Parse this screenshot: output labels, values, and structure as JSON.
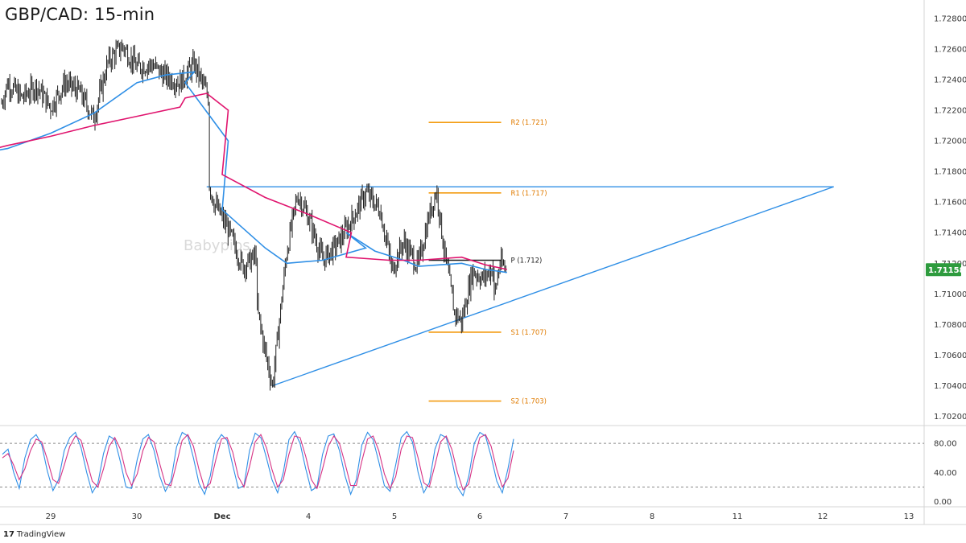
{
  "title": "GBP/CAD: 15-min",
  "watermark": "Babypips",
  "brand": "TradingView",
  "colors": {
    "candles": "#1f1f1f",
    "ema_fast": "#2f8fe6",
    "ema_slow": "#e0146e",
    "resistance": "#2f8fe6",
    "pivot_levels": "#f39c12",
    "pivot_p": "#1f1f1f",
    "price_tag": "#2e9b3e",
    "stoch_k": "#2f8fe6",
    "stoch_d": "#d63384"
  },
  "chart_data": [
    {
      "type": "candlestick",
      "title": "GBP/CAD: 15-min",
      "ylim": [
        1.7014,
        1.7292
      ],
      "y_ticks": [
        "1.72800",
        "1.72600",
        "1.72400",
        "1.72200",
        "1.72000",
        "1.71800",
        "1.71600",
        "1.71400",
        "1.71200",
        "1.71000",
        "1.70800",
        "1.70600",
        "1.70400",
        "1.70200"
      ],
      "x_ticks": [
        "29",
        "30",
        "Dec",
        "4",
        "5",
        "6",
        "7",
        "8",
        "11",
        "12",
        "13"
      ],
      "current_price": "1.71158",
      "price_path": [
        [
          "28 Nov 00:00",
          1.7185
        ],
        [
          "28 Nov 02:00",
          1.7152
        ],
        [
          "28 Nov 04:00",
          1.7196
        ],
        [
          "28 Nov 06:00",
          1.7226
        ],
        [
          "28 Nov 08:00",
          1.7245
        ],
        [
          "28 Nov 10:00",
          1.7222
        ],
        [
          "28 Nov 12:00",
          1.7238
        ],
        [
          "28 Nov 16:00",
          1.7228
        ],
        [
          "28 Nov 20:00",
          1.7236
        ],
        [
          "29 Nov 00:00",
          1.7222
        ],
        [
          "29 Nov 04:00",
          1.7238
        ],
        [
          "29 Nov 08:00",
          1.7232
        ],
        [
          "29 Nov 12:00",
          1.7215
        ],
        [
          "29 Nov 16:00",
          1.7252
        ],
        [
          "29 Nov 20:00",
          1.7262
        ],
        [
          "30 Nov 00:00",
          1.7248
        ],
        [
          "30 Nov 04:00",
          1.725
        ],
        [
          "30 Nov 08:00",
          1.7242
        ],
        [
          "30 Nov 12:00",
          1.7238
        ],
        [
          "30 Nov 16:00",
          1.725
        ],
        [
          "30 Nov 20:00",
          1.7228
        ],
        [
          "1 Dec 00:00",
          1.721
        ],
        [
          "1 Dec 04:00",
          1.7196
        ],
        [
          "1 Dec 08:00",
          1.716
        ],
        [
          "1 Dec 12:00",
          1.7142
        ],
        [
          "1 Dec 16:00",
          1.7118
        ],
        [
          "1 Dec 20:00",
          1.7125
        ],
        [
          "3 Dec 00:00",
          1.7118
        ],
        [
          "3 Dec 04:00",
          1.7124
        ],
        [
          "3 Dec 08:00",
          1.7112
        ],
        [
          "3 Dec 12:00",
          1.7062
        ],
        [
          "3 Dec 14:00",
          1.704
        ],
        [
          "3 Dec 18:00",
          1.7128
        ],
        [
          "3 Dec 21:00",
          1.7165
        ],
        [
          "4 Dec 00:00",
          1.715
        ],
        [
          "4 Dec 04:00",
          1.7122
        ],
        [
          "4 Dec 08:00",
          1.7132
        ],
        [
          "4 Dec 12:00",
          1.7148
        ],
        [
          "4 Dec 16:00",
          1.7166
        ],
        [
          "4 Dec 20:00",
          1.7155
        ],
        [
          "4 Dec 23:00",
          1.712
        ],
        [
          "5 Dec 02:00",
          1.7072
        ],
        [
          "5 Dec 04:00",
          1.7062
        ],
        [
          "5 Dec 08:00",
          1.7098
        ],
        [
          "5 Dec 12:00",
          1.7112
        ],
        [
          "5 Dec 16:00",
          1.7134
        ],
        [
          "5 Dec 20:00",
          1.7118
        ],
        [
          "6 Dec 00:00",
          1.712
        ],
        [
          "6 Dec 03:00",
          1.7152
        ],
        [
          "6 Dec 05:00",
          1.7168
        ],
        [
          "6 Dec 07:00",
          1.713
        ],
        [
          "6 Dec 10:00",
          1.7088
        ],
        [
          "6 Dec 12:00",
          1.7082
        ],
        [
          "6 Dec 15:00",
          1.7115
        ],
        [
          "6 Dec 18:00",
          1.711
        ],
        [
          "6 Dec 21:00",
          1.7118
        ],
        [
          "7 Dec 00:00",
          1.7105
        ],
        [
          "7 Dec 02:00",
          1.7092
        ],
        [
          "7 Dec 04:00",
          1.712
        ],
        [
          "7 Dec 06:00",
          1.7116
        ]
      ],
      "series": [
        {
          "role": "ema_fast",
          "points": [
            [
              "28 Nov 00:00",
              1.719
            ],
            [
              "28 Nov 12:00",
              1.7195
            ],
            [
              "29 Nov 00:00",
              1.7205
            ],
            [
              "29 Nov 12:00",
              1.7218
            ],
            [
              "30 Nov 00:00",
              1.7238
            ],
            [
              "30 Nov 08:00",
              1.7243
            ],
            [
              "30 Nov 16:00",
              1.7245
            ],
            [
              "1 Dec 00:00",
              1.7238
            ],
            [
              "1 Dec 12:00",
              1.72
            ],
            [
              "3 Dec 00:00",
              1.7155
            ],
            [
              "3 Dec 12:00",
              1.713
            ],
            [
              "3 Dec 18:00",
              1.712
            ],
            [
              "4 Dec 04:00",
              1.7122
            ],
            [
              "4 Dec 16:00",
              1.713
            ],
            [
              "5 Dec 00:00",
              1.714
            ],
            [
              "5 Dec 08:00",
              1.7128
            ],
            [
              "5 Dec 16:00",
              1.7122
            ],
            [
              "6 Dec 00:00",
              1.7118
            ],
            [
              "6 Dec 12:00",
              1.712
            ],
            [
              "7 Dec 00:00",
              1.7116
            ],
            [
              "7 Dec 06:00",
              1.7114
            ]
          ]
        },
        {
          "role": "ema_slow",
          "points": [
            [
              "28 Nov 00:00",
              1.719
            ],
            [
              "28 Nov 12:00",
              1.7197
            ],
            [
              "29 Nov 00:00",
              1.7203
            ],
            [
              "29 Nov 12:00",
              1.721
            ],
            [
              "30 Nov 00:00",
              1.7216
            ],
            [
              "30 Nov 12:00",
              1.7222
            ],
            [
              "1 Dec 00:00",
              1.7228
            ],
            [
              "1 Dec 06:00",
              1.7231
            ],
            [
              "1 Dec 12:00",
              1.722
            ],
            [
              "3 Dec 00:00",
              1.7178
            ],
            [
              "3 Dec 12:00",
              1.7163
            ],
            [
              "4 Dec 00:00",
              1.7152
            ],
            [
              "4 Dec 12:00",
              1.714
            ],
            [
              "5 Dec 00:00",
              1.7124
            ],
            [
              "5 Dec 12:00",
              1.7122
            ],
            [
              "6 Dec 00:00",
              1.7122
            ],
            [
              "6 Dec 12:00",
              1.7124
            ],
            [
              "7 Dec 00:00",
              1.7119
            ],
            [
              "7 Dec 06:00",
              1.7116
            ]
          ]
        }
      ],
      "lines": [
        {
          "role": "resistance",
          "from": [
            "1 Dec 06:00",
            1.717
          ],
          "to": [
            "12 Dec 08:00",
            1.717
          ]
        },
        {
          "role": "support_trendline",
          "from": [
            "3 Dec 14:00",
            1.704
          ],
          "to": [
            "12 Dec 08:00",
            1.717
          ]
        }
      ],
      "pivots": [
        {
          "label": "R2 (1.721)",
          "value": 1.7212,
          "from": "5 Dec 23:00",
          "to": "6 Dec 23:00"
        },
        {
          "label": "R1 (1.717)",
          "value": 1.7166,
          "from": "5 Dec 23:00",
          "to": "6 Dec 23:00"
        },
        {
          "label": "P (1.712)",
          "value": 1.7122,
          "from": "5 Dec 23:00",
          "to": "6 Dec 23:00"
        },
        {
          "label": "S1 (1.707)",
          "value": 1.7075,
          "from": "5 Dec 23:00",
          "to": "6 Dec 23:00"
        },
        {
          "label": "S2 (1.703)",
          "value": 1.703,
          "from": "5 Dec 23:00",
          "to": "6 Dec 23:00"
        }
      ]
    },
    {
      "type": "line",
      "ylim": [
        -5,
        100
      ],
      "y_ticks": [
        "80.00",
        "40.00",
        "0.00"
      ],
      "reference_lines": [
        80,
        20
      ],
      "series": [
        {
          "role": "stoch_k",
          "values": [
            65,
            72,
            40,
            18,
            60,
            85,
            92,
            78,
            42,
            15,
            30,
            70,
            88,
            95,
            74,
            40,
            12,
            25,
            66,
            90,
            85,
            55,
            20,
            18,
            58,
            86,
            92,
            70,
            35,
            14,
            28,
            75,
            95,
            90,
            60,
            25,
            10,
            35,
            80,
            92,
            84,
            50,
            18,
            22,
            70,
            94,
            88,
            60,
            30,
            12,
            40,
            85,
            96,
            80,
            45,
            15,
            20,
            65,
            90,
            93,
            70,
            35,
            10,
            30,
            78,
            95,
            85,
            55,
            22,
            14,
            50,
            88,
            96,
            82,
            40,
            12,
            26,
            72,
            92,
            88,
            58,
            20,
            8,
            34,
            80,
            95,
            90,
            62,
            28,
            12,
            45,
            86
          ]
        },
        {
          "role": "stoch_d",
          "values": [
            60,
            66,
            50,
            30,
            45,
            70,
            86,
            82,
            58,
            30,
            25,
            50,
            76,
            90,
            84,
            56,
            28,
            20,
            45,
            76,
            88,
            72,
            40,
            22,
            38,
            70,
            88,
            82,
            52,
            24,
            22,
            52,
            84,
            92,
            76,
            44,
            18,
            25,
            58,
            86,
            88,
            68,
            34,
            20,
            48,
            82,
            92,
            74,
            44,
            20,
            30,
            65,
            90,
            88,
            62,
            30,
            18,
            45,
            76,
            90,
            80,
            52,
            22,
            22,
            56,
            86,
            90,
            70,
            38,
            18,
            34,
            72,
            90,
            88,
            60,
            26,
            20,
            50,
            82,
            90,
            72,
            40,
            16,
            24,
            60,
            88,
            92,
            76,
            44,
            20,
            32,
            70
          ]
        }
      ]
    }
  ]
}
